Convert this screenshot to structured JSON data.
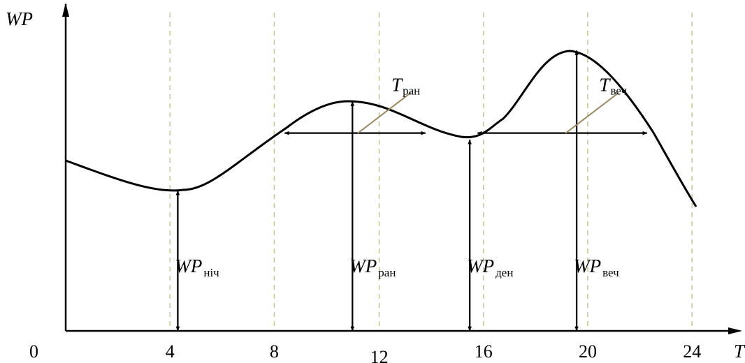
{
  "chart_data": {
    "type": "line",
    "title": "",
    "x": [
      0,
      4,
      8,
      11.5,
      15.2,
      16.5,
      20,
      22,
      24
    ],
    "y": [
      0.68,
      0.57,
      0.78,
      0.93,
      0.79,
      0.78,
      1.1,
      0.78,
      0.47
    ],
    "xlim": [
      0,
      25
    ],
    "ylim": [
      0,
      1.2
    ],
    "xticks": [
      "4",
      "8",
      "12",
      "16",
      "20",
      "24"
    ],
    "xtick_values": [
      4,
      8,
      12,
      16,
      20,
      24
    ],
    "origin_label": "0",
    "xlabel": "T",
    "ylabel": "WP",
    "grid": "vertical dashed",
    "levels": [
      {
        "x": 4.3,
        "value": 0.55,
        "name": "WP",
        "sub": "ніч"
      },
      {
        "x": 11,
        "value": 0.9,
        "name": "WP",
        "sub": "ран"
      },
      {
        "x": 15.5,
        "value": 0.75,
        "name": "WP",
        "sub": "ден"
      },
      {
        "x": 19.6,
        "value": 1.1,
        "name": "WP",
        "sub": "веч"
      }
    ],
    "intervals": [
      {
        "x_start": 8.4,
        "x_end": 13.8,
        "value": 0.79,
        "name": "T",
        "sub": "ран"
      },
      {
        "x_start": 15.8,
        "x_end": 22.3,
        "value": 0.79,
        "name": "T",
        "sub": "веч"
      }
    ]
  },
  "colors": {
    "curve": "#000000",
    "grid": "#c8c89a",
    "leader": "#9c8a62"
  }
}
